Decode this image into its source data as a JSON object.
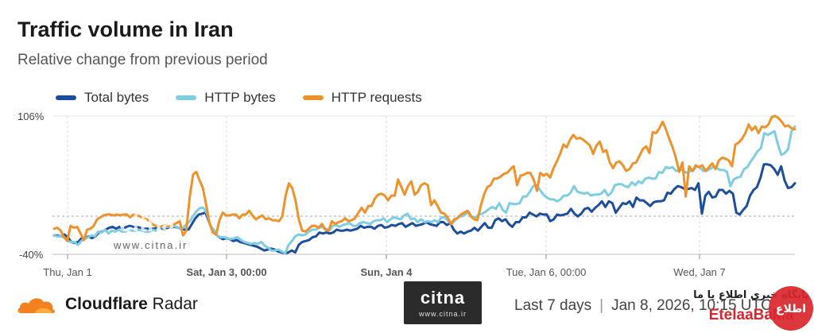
{
  "header": {
    "title": "Traffic volume in Iran",
    "subtitle": "Relative change from previous period"
  },
  "footer": {
    "brand": "Cloudflare Radar",
    "brand_bold": "Cloudflare",
    "brand_rest": " Radar",
    "range": "Last 7 days",
    "date": "Jan 8, 2026, 10:15 UTC"
  },
  "watermarks": {
    "citna_big": "citna",
    "citna_small": "www.citna.ir",
    "ete_arabic": "پایگاه خبری اطلاع یا ما",
    "ete_name": "EtelaaBaMa",
    "ete_badge": "اطلاع"
  },
  "colors": {
    "total_bytes": "#1d4e9e",
    "http_bytes": "#7ecde0",
    "http_requests": "#f0922b",
    "cloudflare_orange": "#f48120"
  },
  "chart_data": {
    "type": "line",
    "title": "Traffic volume in Iran",
    "subtitle": "Relative change from previous period",
    "x_tick_labels": [
      "Thu, Jan 1",
      "Sat, Jan 3, 00:00",
      "Sun, Jan 4",
      "Tue, Jan 6, 00:00",
      "Wed, Jan 7"
    ],
    "y_tick_labels": [
      "106%",
      "-40%"
    ],
    "ylim": [
      -40,
      106
    ],
    "baseline_dashed": 0,
    "legend_position": "top-left",
    "series": [
      {
        "name": "Total bytes",
        "color": "#1d4e9e",
        "values": [
          -20,
          -20,
          -21,
          -19,
          -22,
          -27,
          -28,
          -27,
          -23,
          -23,
          -21,
          -23,
          -21,
          -17,
          -16,
          -14,
          -12,
          -11,
          -13,
          -11,
          -13,
          -11,
          -10,
          -11,
          -11,
          -12,
          -13,
          -13,
          -13,
          -13,
          -12,
          -12,
          -14,
          -12,
          -12,
          -11,
          -12,
          -13,
          -14,
          -14,
          -8,
          -2,
          2,
          3,
          4,
          -6,
          -15,
          -19,
          -22,
          -24,
          -23,
          -24,
          -26,
          -25,
          -27,
          -28,
          -29,
          -30,
          -31,
          -32,
          -34,
          -36,
          -35,
          -34,
          -35,
          -37,
          -38,
          -39,
          -38,
          -36,
          -38,
          -30,
          -27,
          -26,
          -25,
          -22,
          -21,
          -17,
          -18,
          -17,
          -18,
          -17,
          -14,
          -15,
          -15,
          -14,
          -15,
          -14,
          -13,
          -10,
          -12,
          -11,
          -11,
          -13,
          -10,
          -9,
          -12,
          -11,
          -9,
          -10,
          -8,
          -7,
          -11,
          -9,
          -7,
          -10,
          -9,
          -8,
          -6,
          -8,
          -9,
          -10,
          -6,
          -6,
          -9,
          -7,
          -14,
          -18,
          -16,
          -18,
          -16,
          -15,
          -12,
          -15,
          -11,
          -7,
          -12,
          -12,
          -4,
          -2,
          -5,
          -3,
          -8,
          -11,
          -6,
          -6,
          -1,
          -1,
          4,
          2,
          0,
          3,
          2,
          2,
          -5,
          -3,
          2,
          1,
          2,
          3,
          8,
          3,
          0,
          3,
          8,
          9,
          5,
          9,
          12,
          16,
          10,
          16,
          14,
          4,
          9,
          14,
          13,
          16,
          10,
          20,
          17,
          17,
          14,
          11,
          15,
          16,
          16,
          17,
          25,
          24,
          29,
          32,
          31,
          29,
          29,
          30,
          28,
          35,
          3,
          22,
          26,
          20,
          21,
          28,
          28,
          24,
          27,
          24,
          4,
          2,
          7,
          11,
          22,
          28,
          31,
          41,
          55,
          55,
          54,
          50,
          44,
          53,
          38,
          30,
          31,
          35
        ]
      },
      {
        "name": "HTTP bytes",
        "color": "#7ecde0",
        "values": [
          -20,
          -21,
          -21,
          -22,
          -26,
          -27,
          -27,
          -30,
          -26,
          -24,
          -22,
          -20,
          -21,
          -16,
          -17,
          -14,
          -18,
          -15,
          -16,
          -14,
          -16,
          -16,
          -14,
          -15,
          -15,
          -14,
          -15,
          -16,
          -16,
          -14,
          -15,
          -12,
          -11,
          -11,
          -11,
          -10,
          -11,
          -13,
          -12,
          -8,
          -5,
          1,
          6,
          9,
          9,
          3,
          -10,
          -14,
          -20,
          -22,
          -22,
          -23,
          -24,
          -23,
          -22,
          -25,
          -27,
          -28,
          -29,
          -28,
          -29,
          -27,
          -31,
          -33,
          -36,
          -36,
          -35,
          -37,
          -39,
          -30,
          -26,
          -21,
          -19,
          -20,
          -19,
          -16,
          -14,
          -14,
          -12,
          -11,
          -13,
          -15,
          -10,
          -9,
          -11,
          -9,
          -8,
          -7,
          -10,
          -10,
          -7,
          -6,
          -7,
          -8,
          -5,
          -4,
          -4,
          -2,
          -6,
          -3,
          -1,
          -2,
          -3,
          1,
          3,
          -3,
          -2,
          -6,
          -3,
          -6,
          -5,
          -6,
          -4,
          -6,
          -1,
          -1,
          -5,
          -8,
          -4,
          0,
          0,
          2,
          5,
          -1,
          -1,
          2,
          3,
          5,
          8,
          10,
          8,
          14,
          7,
          4,
          14,
          13,
          13,
          14,
          21,
          21,
          26,
          32,
          33,
          28,
          23,
          20,
          18,
          18,
          16,
          18,
          22,
          22,
          25,
          32,
          26,
          25,
          24,
          25,
          22,
          23,
          23,
          24,
          28,
          22,
          25,
          33,
          34,
          34,
          32,
          31,
          36,
          33,
          37,
          35,
          40,
          41,
          40,
          40,
          47,
          46,
          52,
          51,
          52,
          48,
          49,
          49,
          46,
          48,
          48,
          53,
          52,
          48,
          48,
          50,
          52,
          51,
          49,
          49,
          47,
          32,
          39,
          41,
          42,
          50,
          52,
          58,
          63,
          69,
          72,
          88,
          86,
          88,
          90,
          76,
          65,
          67,
          71,
          90,
          95
        ]
      },
      {
        "name": "HTTP requests",
        "color": "#f0922b",
        "values": [
          -13,
          -12,
          -15,
          -22,
          -26,
          -10,
          -12,
          -11,
          -18,
          -25,
          -14,
          -13,
          -10,
          -3,
          -1,
          1,
          2,
          2,
          1,
          2,
          1,
          2,
          2,
          -1,
          2,
          1,
          0,
          -2,
          -3,
          -5,
          -9,
          -10,
          -11,
          -10,
          -9,
          -11,
          -9,
          -7,
          -5,
          -20,
          -15,
          20,
          44,
          47,
          38,
          30,
          12,
          -7,
          -17,
          -19,
          -4,
          4,
          1,
          1,
          2,
          2,
          -2,
          2,
          2,
          6,
          1,
          -3,
          -1,
          1,
          -3,
          -2,
          -4,
          -4,
          -5,
          0,
          22,
          35,
          30,
          17,
          -3,
          -15,
          -16,
          -13,
          -10,
          -10,
          -12,
          -8,
          -14,
          -15,
          -5,
          -8,
          -6,
          -5,
          -2,
          -5,
          -4,
          -2,
          4,
          9,
          4,
          11,
          11,
          19,
          23,
          24,
          22,
          17,
          22,
          22,
          39,
          31,
          23,
          32,
          37,
          23,
          26,
          33,
          35,
          33,
          12,
          17,
          11,
          4,
          3,
          -1,
          -8,
          -3,
          -2,
          2,
          4,
          6,
          0,
          -3,
          -4,
          11,
          23,
          31,
          33,
          40,
          40,
          42,
          45,
          46,
          50,
          53,
          33,
          43,
          44,
          46,
          46,
          39,
          27,
          46,
          43,
          45,
          41,
          51,
          58,
          66,
          76,
          73,
          81,
          86,
          82,
          83,
          81,
          78,
          75,
          66,
          75,
          79,
          68,
          70,
          57,
          51,
          57,
          58,
          54,
          48,
          50,
          56,
          57,
          64,
          71,
          74,
          67,
          89,
          88,
          93,
          100,
          92,
          82,
          73,
          62,
          47,
          57,
          21,
          53,
          48,
          54,
          52,
          54,
          48,
          52,
          56,
          50,
          59,
          62,
          61,
          59,
          53,
          76,
          78,
          82,
          88,
          97,
          91,
          95,
          88,
          95,
          94,
          97,
          105,
          106,
          104,
          100,
          95,
          96,
          93,
          92
        ]
      }
    ]
  }
}
